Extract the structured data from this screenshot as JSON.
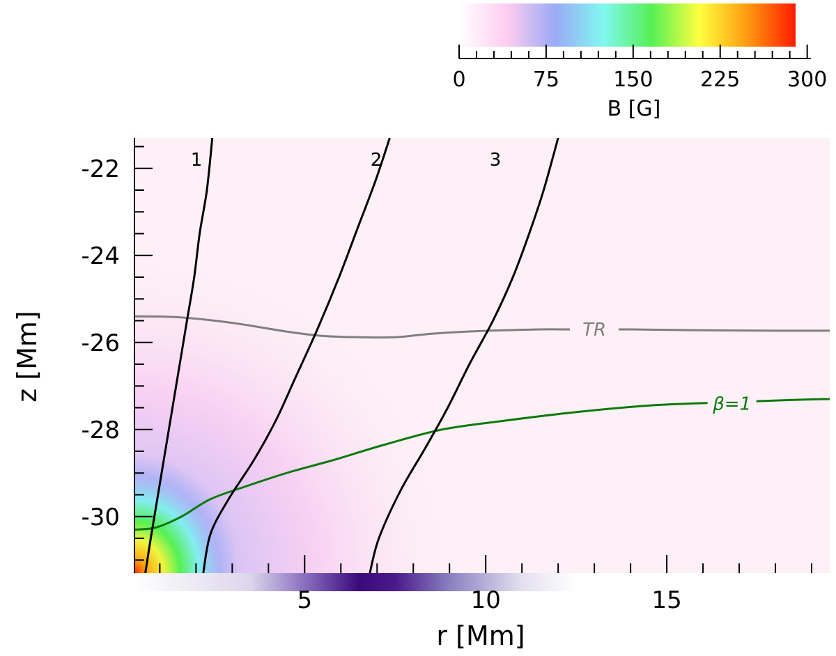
{
  "chart_data": {
    "type": "heatmap",
    "title": "",
    "xlabel": "r [Mm]",
    "ylabel": "z [Mm]",
    "xlim": [
      0.3,
      19.5
    ],
    "ylim": [
      -31.3,
      -21.3
    ],
    "x_ticks": [
      5,
      10,
      15
    ],
    "x_tick_labels": [
      "5",
      "10",
      "15"
    ],
    "y_ticks": [
      -22,
      -24,
      -26,
      -28,
      -30
    ],
    "y_tick_labels": [
      "-22",
      "-24",
      "-26",
      "-28",
      "-30"
    ],
    "colorbar": {
      "label": "B [G]",
      "range": [
        0,
        290
      ],
      "ticks": [
        0,
        75,
        150,
        225,
        300
      ],
      "tick_labels": [
        "0",
        "75",
        "150",
        "225",
        "300"
      ],
      "placement": "top-right",
      "colors": [
        "#ffffff",
        "#ffccf0",
        "#9aaaf5",
        "#80f8f0",
        "#55f055",
        "#ffff40",
        "#ff9a10",
        "#ff1a00"
      ]
    },
    "field_lines": [
      {
        "label": "1",
        "color": "#000000",
        "points": [
          [
            0.6,
            -31.3
          ],
          [
            0.75,
            -30.5
          ],
          [
            0.95,
            -29.5
          ],
          [
            1.15,
            -28.5
          ],
          [
            1.35,
            -27.5
          ],
          [
            1.55,
            -26.5
          ],
          [
            1.75,
            -25.5
          ],
          [
            1.95,
            -24.5
          ],
          [
            2.1,
            -23.5
          ],
          [
            2.3,
            -22.5
          ],
          [
            2.45,
            -21.3
          ]
        ]
      },
      {
        "label": "2",
        "color": "#000000",
        "points": [
          [
            2.2,
            -31.3
          ],
          [
            2.4,
            -30.4
          ],
          [
            2.9,
            -29.6
          ],
          [
            3.6,
            -28.7
          ],
          [
            4.2,
            -27.8
          ],
          [
            4.75,
            -26.8
          ],
          [
            5.35,
            -25.7
          ],
          [
            5.95,
            -24.5
          ],
          [
            6.45,
            -23.4
          ],
          [
            6.95,
            -22.3
          ],
          [
            7.35,
            -21.3
          ]
        ]
      },
      {
        "label": "3",
        "color": "#000000",
        "points": [
          [
            6.8,
            -31.3
          ],
          [
            7.05,
            -30.5
          ],
          [
            7.65,
            -29.4
          ],
          [
            8.35,
            -28.4
          ],
          [
            8.95,
            -27.5
          ],
          [
            9.55,
            -26.5
          ],
          [
            10.2,
            -25.5
          ],
          [
            10.75,
            -24.5
          ],
          [
            11.2,
            -23.5
          ],
          [
            11.6,
            -22.5
          ],
          [
            12.0,
            -21.3
          ]
        ]
      }
    ],
    "contours": [
      {
        "label": "TR",
        "color": "#7f7f7f",
        "points": [
          [
            0.3,
            -25.4
          ],
          [
            1.5,
            -25.42
          ],
          [
            3.0,
            -25.55
          ],
          [
            4.5,
            -25.75
          ],
          [
            5.5,
            -25.85
          ],
          [
            6.5,
            -25.88
          ],
          [
            7.5,
            -25.88
          ],
          [
            8.5,
            -25.8
          ],
          [
            9.5,
            -25.75
          ],
          [
            10.5,
            -25.72
          ],
          [
            11.5,
            -25.7
          ],
          [
            12.5,
            -25.7
          ],
          [
            14.0,
            -25.7
          ],
          [
            16.0,
            -25.72
          ],
          [
            18.0,
            -25.73
          ],
          [
            19.5,
            -25.73
          ]
        ]
      },
      {
        "label": "β=1",
        "color": "#0b7a0b",
        "points": [
          [
            0.3,
            -30.3
          ],
          [
            0.9,
            -30.25
          ],
          [
            1.6,
            -30.0
          ],
          [
            2.4,
            -29.6
          ],
          [
            3.4,
            -29.3
          ],
          [
            4.5,
            -29.0
          ],
          [
            5.8,
            -28.7
          ],
          [
            7.2,
            -28.35
          ],
          [
            8.8,
            -28.0
          ],
          [
            10.5,
            -27.8
          ],
          [
            12.5,
            -27.6
          ],
          [
            14.5,
            -27.45
          ],
          [
            16.5,
            -27.38
          ],
          [
            18.5,
            -27.32
          ],
          [
            19.5,
            -27.3
          ]
        ]
      }
    ],
    "r_profile_bar": {
      "colors": [
        "#ffffff",
        "#dcd6ec",
        "#8a6fbf",
        "#3a0a7a",
        "#4a1a8a",
        "#8a7fc0",
        "#e4e0f0",
        "#ffffff"
      ],
      "stops": [
        0.3,
        3.5,
        5.0,
        6.5,
        7.5,
        9.0,
        11.0,
        12.5
      ]
    }
  }
}
